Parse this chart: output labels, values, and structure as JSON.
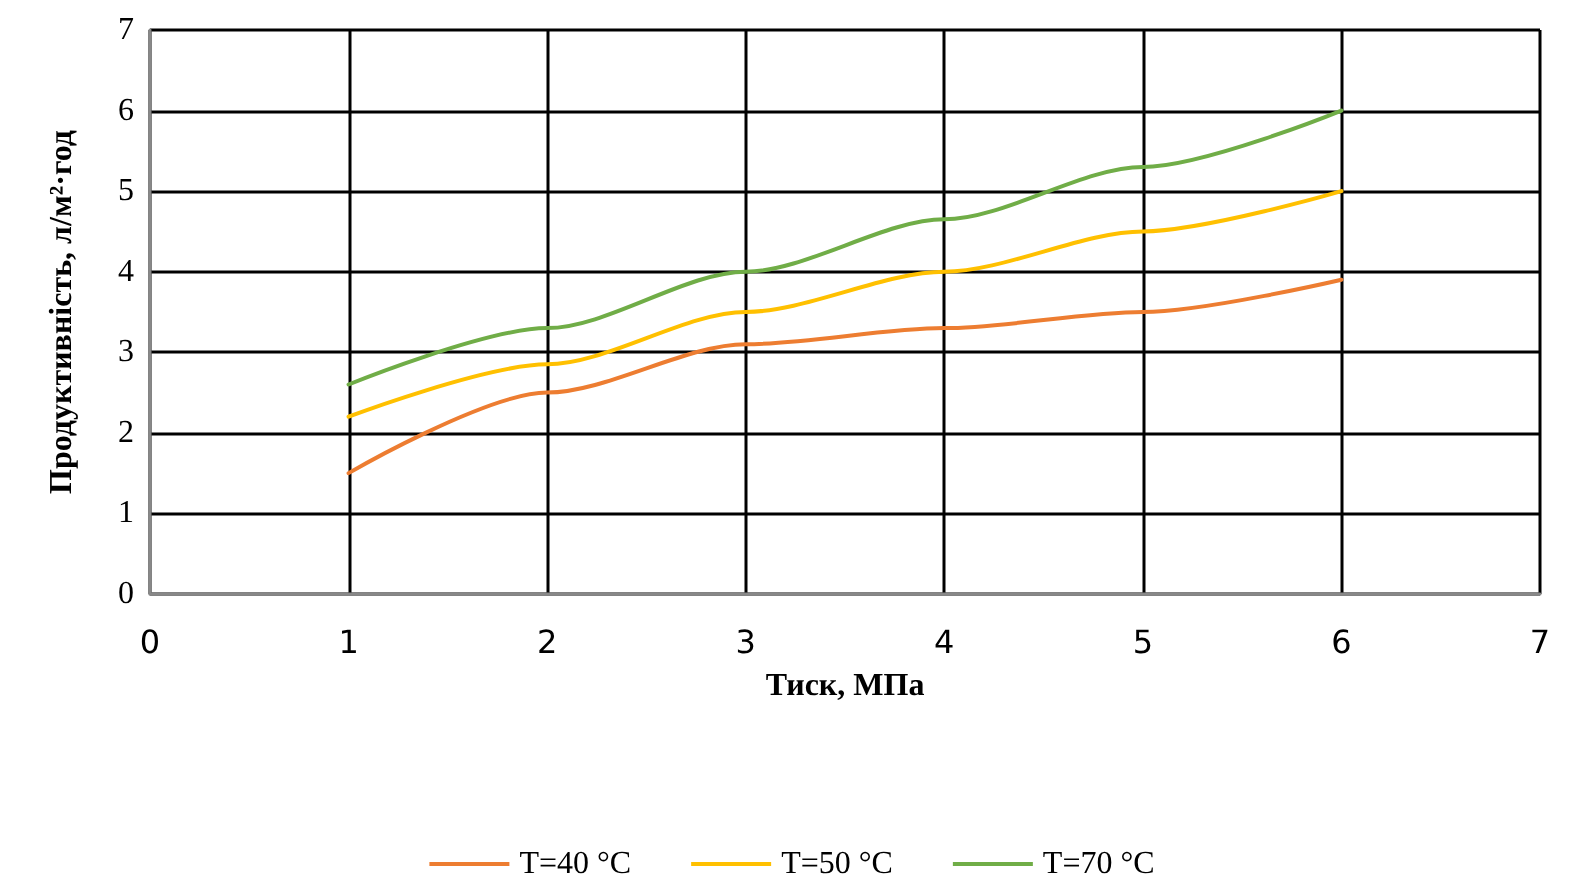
{
  "chart_data": {
    "type": "line",
    "xlabel": "Тиск, МПа",
    "ylabel": "Продуктивність, л/м²·год",
    "x": [
      1,
      2,
      3,
      4,
      5,
      6
    ],
    "series": [
      {
        "name": "T=40 °C",
        "color": "#ed7d31",
        "values": [
          1.5,
          2.5,
          3.1,
          3.3,
          3.5,
          3.9
        ]
      },
      {
        "name": "T=50 °C",
        "color": "#ffc000",
        "values": [
          2.2,
          2.85,
          3.5,
          4.0,
          4.5,
          5.0
        ]
      },
      {
        "name": "T=70 °C",
        "color": "#70ad47",
        "values": [
          2.6,
          3.3,
          4.0,
          4.65,
          5.3,
          6.0
        ]
      }
    ],
    "xlim": [
      0,
      7
    ],
    "xticks": [
      0,
      1,
      2,
      3,
      4,
      5,
      6,
      7
    ],
    "ylim": [
      0,
      7
    ],
    "yticks": [
      0,
      1,
      2,
      3,
      4,
      5,
      6,
      7
    ],
    "grid": true,
    "legend": "bottom",
    "marker": "none",
    "line_style": "solid"
  }
}
